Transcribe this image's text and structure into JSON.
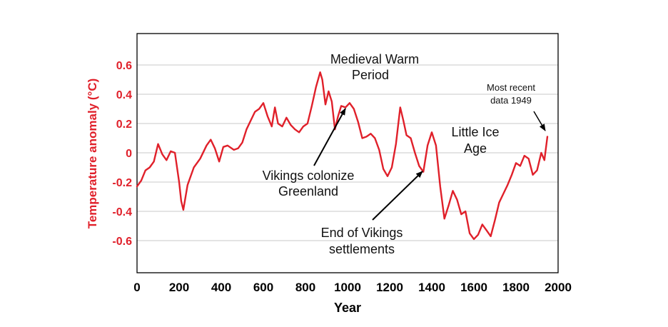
{
  "chart_data": {
    "type": "line",
    "xlabel": "Year",
    "ylabel": "Temperature anomaly (°C)",
    "xlim": [
      0,
      2000
    ],
    "ylim": [
      -0.8,
      0.8
    ],
    "xticks": [
      "0",
      "200",
      "400",
      "600",
      "800",
      "1000",
      "1200",
      "1400",
      "1600",
      "1800",
      "2000"
    ],
    "yticks": [
      "0.6",
      "0.4",
      "0.2",
      "0",
      "-0.2",
      "-0.4",
      "-0.6"
    ],
    "grid": "horizontal",
    "line_color": "#e0202a",
    "series": [
      {
        "x": [
          0,
          20,
          40,
          60,
          80,
          100,
          120,
          140,
          160,
          180,
          200,
          210,
          220,
          240,
          270,
          300,
          330,
          350,
          370,
          390,
          410,
          430,
          460,
          480,
          500,
          520,
          540,
          560,
          580,
          600,
          620,
          640,
          655,
          670,
          690,
          710,
          730,
          750,
          770,
          790,
          810,
          830,
          850,
          870,
          880,
          895,
          910,
          925,
          940,
          955,
          970,
          990,
          1010,
          1030,
          1050,
          1070,
          1090,
          1110,
          1130,
          1150,
          1170,
          1190,
          1210,
          1230,
          1250,
          1265,
          1280,
          1300,
          1320,
          1340,
          1360,
          1380,
          1400,
          1420,
          1440,
          1460,
          1480,
          1500,
          1520,
          1540,
          1560,
          1580,
          1600,
          1620,
          1640,
          1660,
          1680,
          1700,
          1720,
          1740,
          1760,
          1780,
          1800,
          1820,
          1840,
          1860,
          1880,
          1900,
          1920,
          1935,
          1949
        ],
        "y": [
          -0.23,
          -0.19,
          -0.12,
          -0.1,
          -0.06,
          0.06,
          -0.01,
          -0.05,
          0.01,
          0.0,
          -0.2,
          -0.33,
          -0.39,
          -0.22,
          -0.1,
          -0.04,
          0.05,
          0.09,
          0.03,
          -0.06,
          0.04,
          0.05,
          0.02,
          0.03,
          0.07,
          0.16,
          0.22,
          0.28,
          0.3,
          0.34,
          0.25,
          0.18,
          0.31,
          0.2,
          0.18,
          0.24,
          0.19,
          0.16,
          0.14,
          0.18,
          0.2,
          0.32,
          0.45,
          0.55,
          0.5,
          0.33,
          0.42,
          0.35,
          0.16,
          0.25,
          0.32,
          0.31,
          0.34,
          0.3,
          0.21,
          0.1,
          0.11,
          0.13,
          0.1,
          0.02,
          -0.11,
          -0.16,
          -0.1,
          0.06,
          0.31,
          0.22,
          0.12,
          0.1,
          0.0,
          -0.09,
          -0.13,
          0.05,
          0.14,
          0.05,
          -0.23,
          -0.45,
          -0.36,
          -0.26,
          -0.32,
          -0.42,
          -0.4,
          -0.55,
          -0.59,
          -0.56,
          -0.49,
          -0.53,
          -0.57,
          -0.46,
          -0.34,
          -0.28,
          -0.22,
          -0.15,
          -0.07,
          -0.09,
          -0.02,
          -0.04,
          -0.15,
          -0.12,
          0.0,
          -0.05,
          0.11
        ]
      }
    ]
  },
  "annotations": {
    "medieval": [
      "Medieval Warm",
      "Period"
    ],
    "vikings_colonize": [
      "Vikings colonize",
      "Greenland"
    ],
    "end_vikings": [
      "End of Vikings",
      "settlements"
    ],
    "little_ice_age": [
      "Little Ice",
      "Age"
    ],
    "most_recent": [
      "Most recent",
      "data 1949"
    ]
  }
}
